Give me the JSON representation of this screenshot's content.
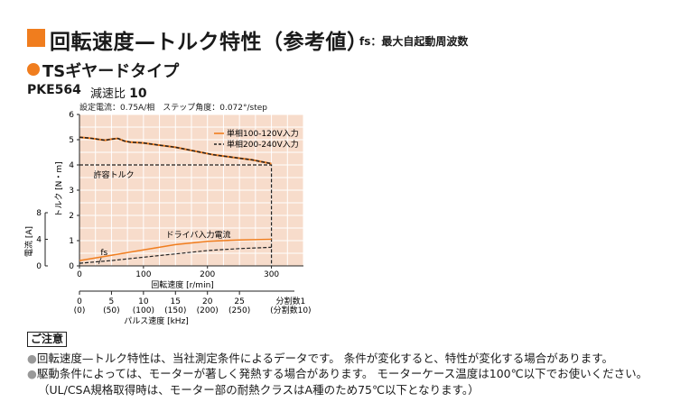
{
  "header": {
    "title": "回転速度—トルク特性（参考値）",
    "title_note": "fs：最大自起動周波数",
    "subheading": "TSギヤードタイプ",
    "model": "PKE564",
    "ratio_label": "減速比",
    "ratio_value": "10",
    "conditions": "設定電流：0.75A/相　ステップ角度：0.072°/step"
  },
  "colors": {
    "accent": "#f07d1e",
    "dark_series": "#222222"
  },
  "chart_data": {
    "type": "line",
    "xlabel": "回転速度 [r/min]",
    "x_ticks": [
      0,
      100,
      200,
      300
    ],
    "xlim": [
      0,
      350
    ],
    "torque_axis": {
      "label": "トルク [N・m]",
      "ticks": [
        0,
        1,
        2,
        3,
        4,
        5,
        6
      ],
      "ylim": [
        0,
        6
      ]
    },
    "current_axis": {
      "label": "電流 [A]",
      "ticks": [
        0,
        4,
        8
      ],
      "ylim": [
        0,
        8
      ]
    },
    "pulse_axis": {
      "label": "パルス速度 [kHz]",
      "ticks": [
        {
          "value": "0",
          "sub": "(0)"
        },
        {
          "value": "5",
          "sub": "(50)"
        },
        {
          "value": "10",
          "sub": "(100)"
        },
        {
          "value": "15",
          "sub": "(150)"
        },
        {
          "value": "20",
          "sub": "(200)"
        },
        {
          "value": "25",
          "sub": "(250)"
        }
      ],
      "division_label": "分割数1",
      "division_sub": "(分割数10)"
    },
    "legend": [
      {
        "name": "単相100-120V入力",
        "style": "solid",
        "color": "#f07d1e"
      },
      {
        "name": "単相200-240V入力",
        "style": "dashed",
        "color": "#222222"
      }
    ],
    "allowable_torque": {
      "label": "許容トルク",
      "value": 4,
      "limit_speed": 300
    },
    "series": [
      {
        "name": "単相100-120V入力",
        "kind": "torque",
        "x": [
          0,
          20,
          40,
          50,
          60,
          70,
          80,
          100,
          120,
          150,
          180,
          210,
          240,
          270,
          300
        ],
        "y": [
          5.1,
          5.05,
          4.98,
          5.02,
          5.05,
          4.95,
          4.9,
          4.87,
          4.8,
          4.7,
          4.55,
          4.4,
          4.3,
          4.2,
          4.05
        ]
      },
      {
        "name": "単相200-240V入力",
        "kind": "torque",
        "x": [
          0,
          20,
          40,
          50,
          60,
          70,
          80,
          100,
          120,
          150,
          180,
          210,
          240,
          270,
          300
        ],
        "y": [
          5.1,
          5.05,
          4.98,
          5.02,
          5.05,
          4.95,
          4.9,
          4.87,
          4.8,
          4.7,
          4.55,
          4.4,
          4.3,
          4.2,
          4.05
        ]
      },
      {
        "name": "単相100-120V入力",
        "kind": "current",
        "x": [
          0,
          50,
          100,
          150,
          200,
          250,
          300
        ],
        "y": [
          0.8,
          1.6,
          2.4,
          3.2,
          3.7,
          3.9,
          4.0
        ]
      },
      {
        "name": "単相200-240V入力",
        "kind": "current",
        "x": [
          0,
          50,
          100,
          150,
          200,
          250,
          300
        ],
        "y": [
          0.4,
          0.8,
          1.3,
          1.8,
          2.3,
          2.6,
          2.8
        ]
      }
    ],
    "annotations": [
      {
        "text": "ドライバ入力電流"
      },
      {
        "text": "fs"
      }
    ]
  },
  "notes": {
    "label": "ご注意",
    "items": [
      "回転速度—トルク特性は、当社測定条件によるデータです。 条件が変化すると、特性が変化する場合があります。",
      "駆動条件によっては、モーターが著しく発熱する場合があります。 モーターケース温度は100℃以下でお使いください。",
      "（UL/CSA規格取得時は、モーター部の耐熱クラスはA種のため75℃以下となります。）"
    ]
  }
}
